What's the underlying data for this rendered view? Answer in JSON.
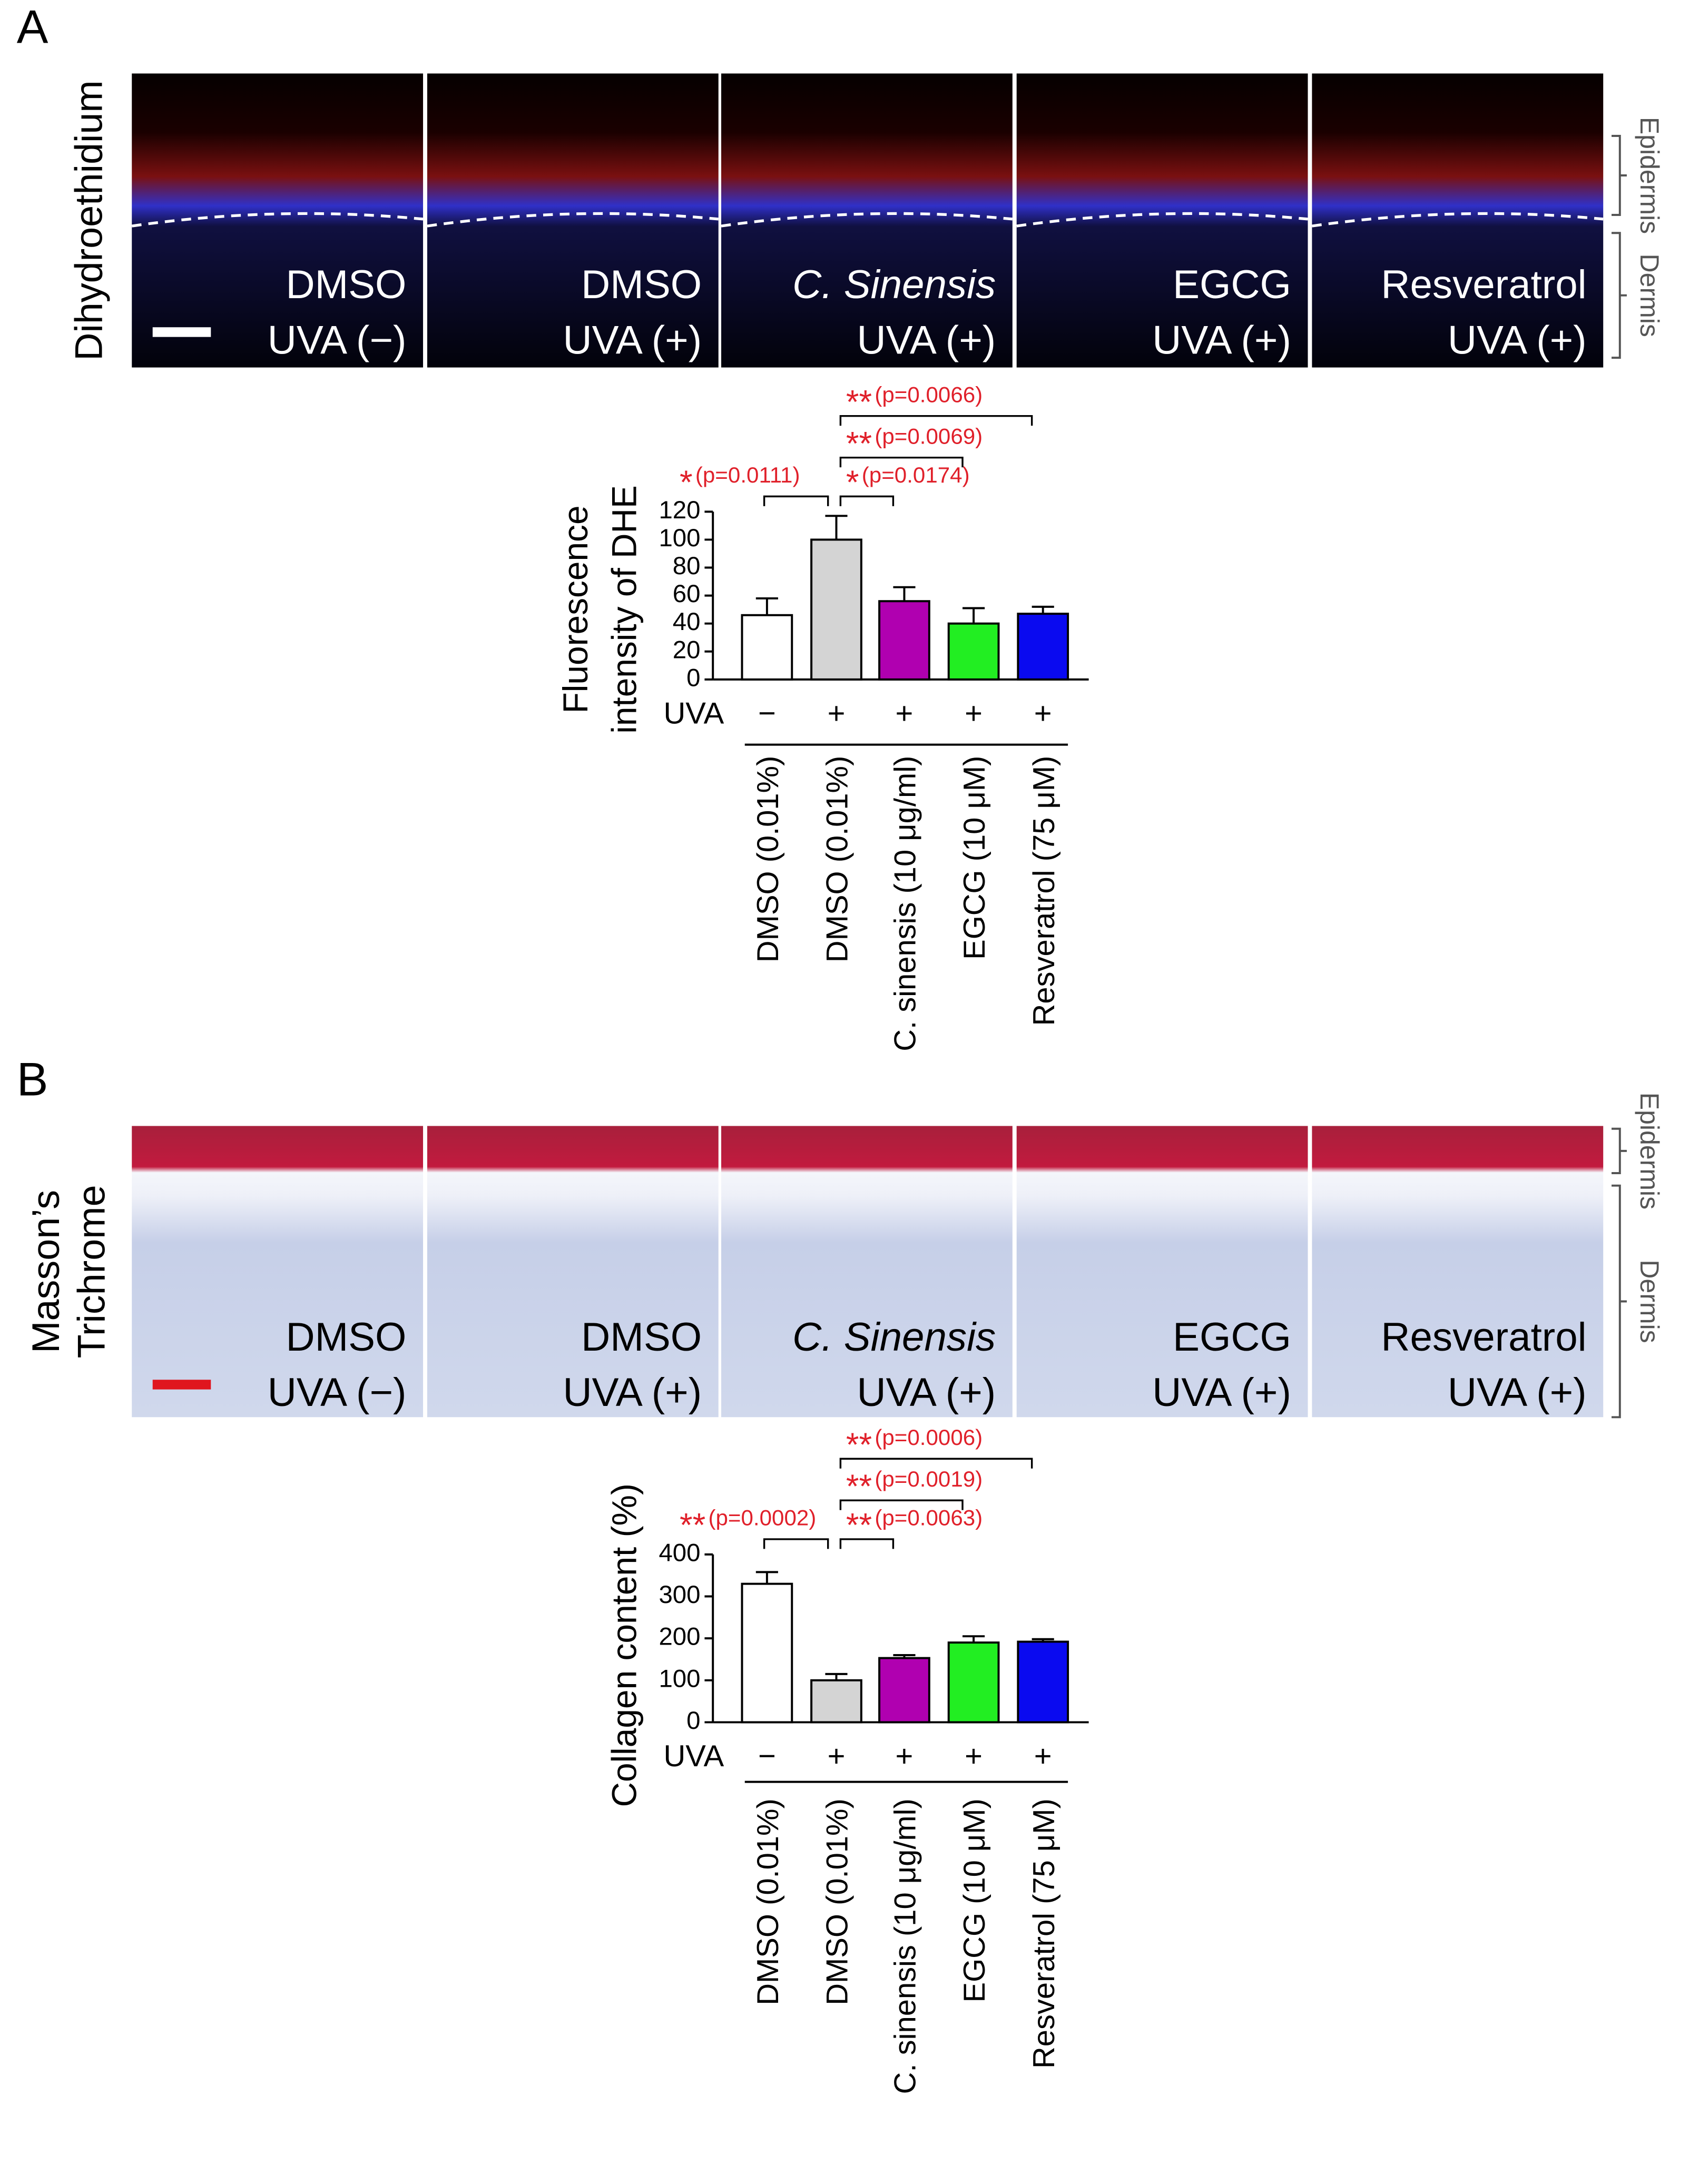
{
  "figure": {
    "panels": [
      {
        "letter": "A",
        "stain": [
          "Dihydroethidium"
        ],
        "images": [
          [
            "DMSO",
            "UVA (−)"
          ],
          [
            "DMSO",
            "UVA (+)"
          ],
          [
            "C. Sinensis",
            "UVA (+)"
          ],
          [
            "EGCG",
            "UVA (+)"
          ],
          [
            "Resveratrol",
            "UVA (+)"
          ]
        ],
        "layers": [
          "Epidermis",
          "Dermis"
        ]
      },
      {
        "letter": "B",
        "stain": [
          "Masson’s",
          "Trichrome"
        ],
        "images": [
          [
            "DMSO",
            "UVA (−)"
          ],
          [
            "DMSO",
            "UVA (+)"
          ],
          [
            "C. Sinensis",
            "UVA (+)"
          ],
          [
            "EGCG",
            "UVA (+)"
          ],
          [
            "Resveratrol",
            "UVA (+)"
          ]
        ],
        "layers": [
          "Epidermis",
          "Dermis"
        ]
      }
    ]
  },
  "chart_data": [
    {
      "type": "bar",
      "ylabel": [
        "Fluorescence",
        "intensity of DHE"
      ],
      "categories": [
        "DMSO (0.01%)",
        "DMSO (0.01%)",
        "C. sinensis (10 μg/ml)",
        "EGCG (10 μM)",
        "Resveratrol (75 μM)"
      ],
      "values": [
        46,
        100,
        56,
        40,
        47
      ],
      "errors": [
        12,
        17,
        10,
        11,
        5
      ],
      "colors": [
        "#ffffff",
        "#d4d4d4",
        "#b000b0",
        "#22ee22",
        "#0a0af0"
      ],
      "ylim": [
        0,
        120
      ],
      "yticks": [
        0,
        20,
        40,
        60,
        80,
        100,
        120
      ],
      "uva_label": "UVA",
      "uva": [
        "−",
        "+",
        "+",
        "+",
        "+"
      ],
      "annotations": [
        {
          "stars": "*",
          "text": "(p=0.0111)"
        },
        {
          "stars": "*",
          "text": "(p=0.0174)"
        },
        {
          "stars": "**",
          "text": "(p=0.0069)"
        },
        {
          "stars": "**",
          "text": "(p=0.0066)"
        }
      ]
    },
    {
      "type": "bar",
      "ylabel": [
        "Collagen content (%)"
      ],
      "categories": [
        "DMSO (0.01%)",
        "DMSO (0.01%)",
        "C. sinensis (10 μg/ml)",
        "EGCG (10 μM)",
        "Resveratrol (75 μM)"
      ],
      "values": [
        330,
        100,
        153,
        190,
        192
      ],
      "errors": [
        28,
        15,
        7,
        15,
        6
      ],
      "colors": [
        "#ffffff",
        "#d4d4d4",
        "#b000b0",
        "#22ee22",
        "#0a0af0"
      ],
      "ylim": [
        0,
        400
      ],
      "yticks": [
        0,
        100,
        200,
        300,
        400
      ],
      "uva_label": "UVA",
      "uva": [
        "−",
        "+",
        "+",
        "+",
        "+"
      ],
      "annotations": [
        {
          "stars": "**",
          "text": "(p=0.0002)"
        },
        {
          "stars": "**",
          "text": "(p=0.0063)"
        },
        {
          "stars": "**",
          "text": "(p=0.0019)"
        },
        {
          "stars": "**",
          "text": "(p=0.0006)"
        }
      ]
    }
  ]
}
